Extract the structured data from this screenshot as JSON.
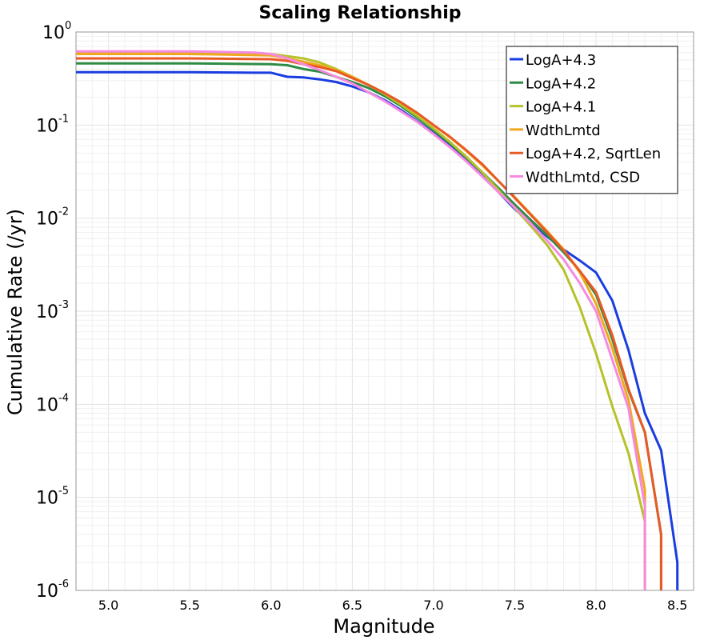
{
  "chart_data": {
    "type": "line",
    "title": "Scaling Relationship",
    "xlabel": "Magnitude",
    "ylabel": "Cumulative Rate (/yr)",
    "xlim": [
      4.8,
      8.6
    ],
    "ylim": [
      1e-06,
      1
    ],
    "yscale": "log",
    "grid": true,
    "legend_position": "top-right",
    "x_ticks": [
      "5.0",
      "5.5",
      "6.0",
      "6.5",
      "7.0",
      "7.5",
      "8.0",
      "8.5"
    ],
    "y_ticks": [
      {
        "base": "10",
        "exp": "0"
      },
      {
        "base": "10",
        "exp": "-1"
      },
      {
        "base": "10",
        "exp": "-2"
      },
      {
        "base": "10",
        "exp": "-3"
      },
      {
        "base": "10",
        "exp": "-4"
      },
      {
        "base": "10",
        "exp": "-5"
      },
      {
        "base": "10",
        "exp": "-6"
      }
    ],
    "series": [
      {
        "name": "LogA+4.3",
        "color": "#1a3de0",
        "x": [
          4.8,
          5.5,
          5.9,
          6.0,
          6.1,
          6.2,
          6.3,
          6.4,
          6.5,
          6.6,
          6.7,
          6.8,
          6.9,
          7.0,
          7.1,
          7.2,
          7.3,
          7.4,
          7.5,
          7.6,
          7.7,
          7.8,
          7.9,
          8.0,
          8.1,
          8.2,
          8.3,
          8.4,
          8.5,
          8.5
        ],
        "y": [
          0.37,
          0.37,
          0.365,
          0.365,
          0.33,
          0.325,
          0.31,
          0.29,
          0.26,
          0.225,
          0.185,
          0.145,
          0.11,
          0.082,
          0.06,
          0.043,
          0.029,
          0.019,
          0.0125,
          0.0088,
          0.0063,
          0.0046,
          0.0035,
          0.0026,
          0.0013,
          0.00038,
          8e-05,
          3.2e-05,
          2e-06,
          1e-06
        ]
      },
      {
        "name": "LogA+4.2",
        "color": "#2e8b45",
        "x": [
          4.8,
          5.5,
          6.0,
          6.1,
          6.2,
          6.3,
          6.4,
          6.5,
          6.6,
          6.7,
          6.8,
          6.9,
          7.0,
          7.1,
          7.2,
          7.3,
          7.4,
          7.5,
          7.6,
          7.7,
          7.8,
          7.9,
          8.0,
          8.1,
          8.2,
          8.3,
          8.4,
          8.4
        ],
        "y": [
          0.46,
          0.46,
          0.45,
          0.44,
          0.4,
          0.375,
          0.33,
          0.29,
          0.25,
          0.205,
          0.16,
          0.12,
          0.088,
          0.064,
          0.045,
          0.031,
          0.021,
          0.014,
          0.0095,
          0.0065,
          0.0043,
          0.0027,
          0.0015,
          0.0005,
          0.00014,
          5e-05,
          4e-06,
          1e-06
        ]
      },
      {
        "name": "LogA+4.1",
        "color": "#b5c22a",
        "x": [
          4.8,
          5.5,
          6.0,
          6.1,
          6.2,
          6.3,
          6.4,
          6.5,
          6.6,
          6.7,
          6.8,
          6.9,
          7.0,
          7.1,
          7.2,
          7.3,
          7.4,
          7.5,
          7.6,
          7.7,
          7.8,
          7.9,
          8.0,
          8.1,
          8.2,
          8.3,
          8.3
        ],
        "y": [
          0.6,
          0.6,
          0.58,
          0.55,
          0.52,
          0.47,
          0.4,
          0.33,
          0.27,
          0.215,
          0.165,
          0.125,
          0.092,
          0.066,
          0.046,
          0.031,
          0.02,
          0.0128,
          0.0082,
          0.0051,
          0.0028,
          0.0011,
          0.00035,
          9.5e-05,
          2.95e-05,
          5.5e-06,
          1e-06
        ]
      },
      {
        "name": "WdthLmtd",
        "color": "#f0a81e",
        "x": [
          4.8,
          5.5,
          6.0,
          6.1,
          6.2,
          6.3,
          6.4,
          6.5,
          6.6,
          6.7,
          6.8,
          6.9,
          7.0,
          7.1,
          7.2,
          7.3,
          7.4,
          7.5,
          7.6,
          7.7,
          7.8,
          7.9,
          8.0,
          8.1,
          8.2,
          8.3,
          8.3
        ],
        "y": [
          0.58,
          0.58,
          0.56,
          0.52,
          0.48,
          0.44,
          0.39,
          0.33,
          0.27,
          0.22,
          0.175,
          0.135,
          0.1,
          0.074,
          0.053,
          0.037,
          0.025,
          0.0168,
          0.011,
          0.0072,
          0.0046,
          0.0026,
          0.0012,
          0.0004,
          0.00011,
          1.2e-05,
          1e-06
        ]
      },
      {
        "name": "LogA+4.2, SqrtLen",
        "color": "#e85a25",
        "x": [
          4.8,
          5.5,
          6.0,
          6.1,
          6.2,
          6.3,
          6.4,
          6.5,
          6.6,
          6.7,
          6.8,
          6.9,
          7.0,
          7.1,
          7.2,
          7.3,
          7.4,
          7.5,
          7.6,
          7.7,
          7.8,
          7.9,
          8.0,
          8.1,
          8.2,
          8.3,
          8.4,
          8.4
        ],
        "y": [
          0.52,
          0.52,
          0.51,
          0.49,
          0.45,
          0.42,
          0.38,
          0.32,
          0.27,
          0.22,
          0.175,
          0.135,
          0.1,
          0.075,
          0.054,
          0.038,
          0.025,
          0.0165,
          0.0108,
          0.007,
          0.0045,
          0.0027,
          0.0016,
          0.00055,
          0.000145,
          5e-05,
          4e-06,
          1e-06
        ]
      },
      {
        "name": "WdthLmtd, CSD",
        "color": "#f58ae0",
        "x": [
          4.8,
          5.5,
          5.9,
          6.0,
          6.1,
          6.2,
          6.3,
          6.4,
          6.5,
          6.6,
          6.7,
          6.8,
          6.9,
          7.0,
          7.1,
          7.2,
          7.3,
          7.4,
          7.5,
          7.6,
          7.7,
          7.8,
          7.9,
          8.0,
          8.1,
          8.2,
          8.3,
          8.3
        ],
        "y": [
          0.62,
          0.62,
          0.6,
          0.58,
          0.52,
          0.45,
          0.39,
          0.33,
          0.28,
          0.225,
          0.18,
          0.14,
          0.108,
          0.08,
          0.058,
          0.041,
          0.028,
          0.019,
          0.013,
          0.0087,
          0.0057,
          0.0036,
          0.002,
          0.001,
          0.0003,
          9e-05,
          8e-06,
          1e-06
        ]
      }
    ]
  }
}
